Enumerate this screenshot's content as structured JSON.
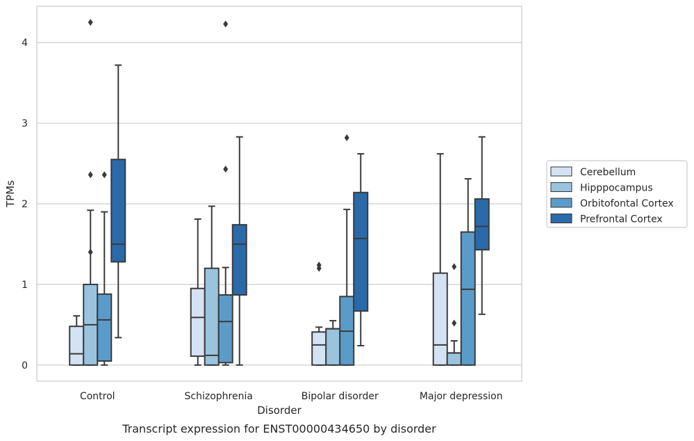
{
  "chart_data": {
    "type": "box",
    "title": "",
    "caption": "Transcript expression for ENST00000434650 by disorder",
    "xlabel": "Disorder",
    "ylabel": "TPMs",
    "ylim": [
      -0.2,
      4.45
    ],
    "yticks": [
      0,
      1,
      2,
      3,
      4
    ],
    "grid": "horizontal",
    "legend_position": "right",
    "categories": [
      "Control",
      "Schizophrenia",
      "Bipolar disorder",
      "Major depression"
    ],
    "series": [
      {
        "name": "Cerebellum",
        "color": "#d3e3f3",
        "boxes": [
          {
            "whislo": 0,
            "q1": 0,
            "med": 0.14,
            "q3": 0.48,
            "whishi": 0.61,
            "fliers": []
          },
          {
            "whislo": 0,
            "q1": 0.11,
            "med": 0.59,
            "q3": 0.95,
            "whishi": 1.81,
            "fliers": []
          },
          {
            "whislo": 0,
            "q1": 0,
            "med": 0.25,
            "q3": 0.41,
            "whishi": 0.47,
            "fliers": [
              1.2,
              1.24
            ]
          },
          {
            "whislo": 0,
            "q1": 0,
            "med": 0.25,
            "q3": 1.14,
            "whishi": 2.62,
            "fliers": []
          }
        ]
      },
      {
        "name": "Hipppocampus",
        "color": "#9ac4de",
        "boxes": [
          {
            "whislo": 0,
            "q1": 0,
            "med": 0.5,
            "q3": 1.0,
            "whishi": 1.92,
            "fliers": [
              1.4,
              2.36,
              4.25
            ]
          },
          {
            "whislo": 0,
            "q1": 0,
            "med": 0.12,
            "q3": 1.2,
            "whishi": 1.97,
            "fliers": []
          },
          {
            "whislo": 0,
            "q1": 0,
            "med": 0.45,
            "q3": 0.45,
            "whishi": 0.55,
            "fliers": []
          },
          {
            "whislo": 0,
            "q1": 0,
            "med": 0.15,
            "q3": 0.15,
            "whishi": 0.3,
            "fliers": [
              0.52,
              1.22
            ]
          }
        ]
      },
      {
        "name": "Orbitofontal Cortex",
        "color": "#5b9bc9",
        "boxes": [
          {
            "whislo": 0,
            "q1": 0.05,
            "med": 0.56,
            "q3": 0.88,
            "whishi": 1.9,
            "fliers": [
              2.36
            ]
          },
          {
            "whislo": 0,
            "q1": 0.03,
            "med": 0.54,
            "q3": 0.87,
            "whishi": 1.21,
            "fliers": [
              2.43,
              4.23
            ]
          },
          {
            "whislo": 0,
            "q1": 0,
            "med": 0.42,
            "q3": 0.85,
            "whishi": 1.93,
            "fliers": [
              2.82
            ]
          },
          {
            "whislo": 0,
            "q1": 0,
            "med": 0.94,
            "q3": 1.65,
            "whishi": 2.31,
            "fliers": []
          }
        ]
      },
      {
        "name": "Prefrontal Cortex",
        "color": "#2a6aaa",
        "boxes": [
          {
            "whislo": 0.34,
            "q1": 1.28,
            "med": 1.5,
            "q3": 2.55,
            "whishi": 3.72,
            "fliers": []
          },
          {
            "whislo": 0,
            "q1": 0.87,
            "med": 1.5,
            "q3": 1.74,
            "whishi": 2.83,
            "fliers": []
          },
          {
            "whislo": 0.24,
            "q1": 0.67,
            "med": 1.57,
            "q3": 2.14,
            "whishi": 2.62,
            "fliers": []
          },
          {
            "whislo": 0.63,
            "q1": 1.43,
            "med": 1.72,
            "q3": 2.06,
            "whishi": 2.83,
            "fliers": []
          }
        ]
      }
    ]
  }
}
